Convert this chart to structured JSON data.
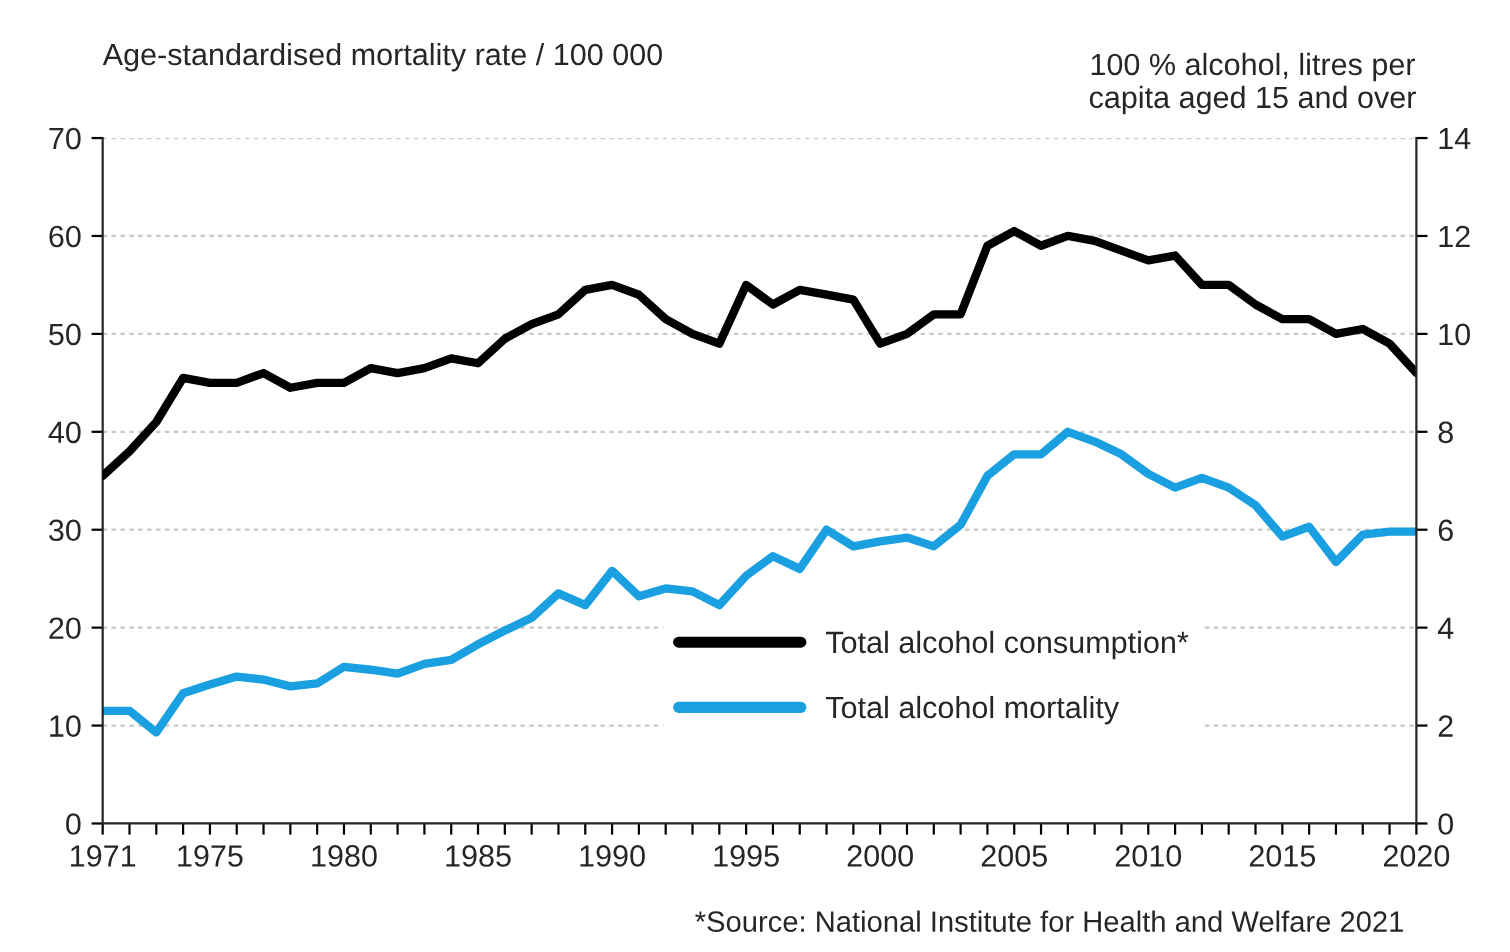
{
  "chart_data": {
    "type": "line",
    "ylabel": "Age-standardised mortality rate / 100 000",
    "y2label": "100 % alcohol, litres per\ncapita aged 15 and over",
    "annotations": [
      "*Source: National Institute for Health and Welfare 2021"
    ],
    "x": [
      1971,
      1972,
      1973,
      1974,
      1975,
      1976,
      1977,
      1978,
      1979,
      1980,
      1981,
      1982,
      1983,
      1984,
      1985,
      1986,
      1987,
      1988,
      1989,
      1990,
      1991,
      1992,
      1993,
      1994,
      1995,
      1996,
      1997,
      1998,
      1999,
      2000,
      2001,
      2002,
      2003,
      2004,
      2005,
      2006,
      2007,
      2008,
      2009,
      2010,
      2011,
      2012,
      2013,
      2014,
      2015,
      2016,
      2017,
      2018,
      2019,
      2020
    ],
    "series": [
      {
        "name": "Total alcohol consumption*",
        "color": "#000000",
        "axis": "y2",
        "values": [
          7.1,
          7.6,
          8.2,
          9.1,
          9.0,
          9.0,
          9.2,
          8.9,
          9.0,
          9.0,
          9.3,
          9.2,
          9.3,
          9.5,
          9.4,
          9.9,
          10.2,
          10.4,
          10.9,
          11.0,
          10.8,
          10.3,
          10.0,
          9.8,
          11.0,
          10.6,
          10.9,
          10.8,
          10.7,
          9.8,
          10.0,
          10.4,
          10.4,
          11.8,
          12.1,
          11.8,
          12.0,
          11.9,
          11.7,
          11.5,
          11.6,
          11.0,
          11.0,
          10.6,
          10.3,
          10.3,
          10.0,
          10.1,
          9.8,
          9.2
        ]
      },
      {
        "name": "Total alcohol mortality",
        "color": "#1a9fe0",
        "values": [
          11.5,
          11.5,
          9.3,
          13.3,
          14.2,
          15.0,
          14.7,
          14.0,
          14.3,
          16.0,
          15.7,
          15.3,
          16.3,
          16.7,
          18.3,
          19.7,
          21.0,
          23.5,
          22.3,
          25.8,
          23.2,
          24.0,
          23.7,
          22.3,
          25.3,
          27.3,
          26.0,
          30.0,
          28.3,
          28.8,
          29.2,
          28.3,
          30.5,
          35.5,
          37.7,
          37.7,
          40.0,
          39.0,
          37.7,
          35.7,
          34.3,
          35.3,
          34.3,
          32.5,
          29.3,
          30.3,
          26.7,
          29.5,
          29.8,
          29.8
        ]
      }
    ],
    "xlim": [
      1971,
      2020
    ],
    "xticks": [
      1971,
      {
        "value": 1972,
        "label": null
      },
      {
        "value": 1973,
        "label": null
      },
      {
        "value": 1974,
        "label": null
      },
      1975,
      {
        "value": 1976,
        "label": null
      },
      {
        "value": 1977,
        "label": null
      },
      {
        "value": 1978,
        "label": null
      },
      {
        "value": 1979,
        "label": null
      },
      1980,
      {
        "value": 1981,
        "label": null
      },
      {
        "value": 1982,
        "label": null
      },
      {
        "value": 1983,
        "label": null
      },
      {
        "value": 1984,
        "label": null
      },
      1985,
      {
        "value": 1986,
        "label": null
      },
      {
        "value": 1987,
        "label": null
      },
      {
        "value": 1988,
        "label": null
      },
      {
        "value": 1989,
        "label": null
      },
      1990,
      {
        "value": 1991,
        "label": null
      },
      {
        "value": 1992,
        "label": null
      },
      {
        "value": 1993,
        "label": null
      },
      {
        "value": 1994,
        "label": null
      },
      1995,
      {
        "value": 1996,
        "label": null
      },
      {
        "value": 1997,
        "label": null
      },
      {
        "value": 1998,
        "label": null
      },
      {
        "value": 1999,
        "label": null
      },
      2000,
      {
        "value": 2001,
        "label": null
      },
      {
        "value": 2002,
        "label": null
      },
      {
        "value": 2003,
        "label": null
      },
      {
        "value": 2004,
        "label": null
      },
      2005,
      {
        "value": 2006,
        "label": null
      },
      {
        "value": 2007,
        "label": null
      },
      {
        "value": 2008,
        "label": null
      },
      {
        "value": 2009,
        "label": null
      },
      2010,
      {
        "value": 2011,
        "label": null
      },
      {
        "value": 2012,
        "label": null
      },
      {
        "value": 2013,
        "label": null
      },
      {
        "value": 2014,
        "label": null
      },
      2015,
      {
        "value": 2016,
        "label": null
      },
      {
        "value": 2017,
        "label": null
      },
      {
        "value": 2018,
        "label": null
      },
      {
        "value": 2019,
        "label": null
      },
      2020
    ],
    "ylim": [
      0,
      70
    ],
    "yticks": [
      0,
      10,
      20,
      30,
      40,
      50,
      60,
      70
    ],
    "y2lim": [
      0,
      14
    ],
    "y2ticks": [
      0,
      2,
      4,
      6,
      8,
      10,
      12,
      14
    ],
    "grid": "y",
    "legend": "bottom right",
    "marker": "none",
    "line_style": "solid"
  }
}
